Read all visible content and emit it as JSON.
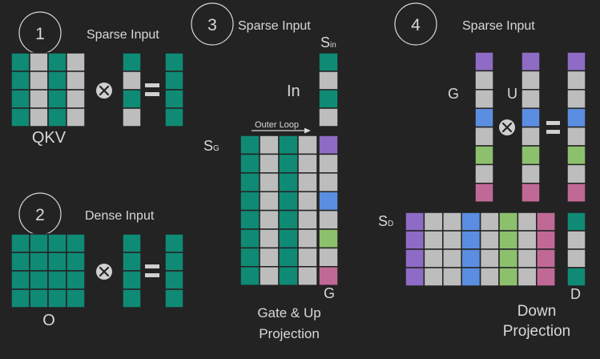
{
  "colors": {
    "background": "#232323",
    "teal": "#0f8a75",
    "gray": "#bdbdbd",
    "purple": "#8e6bc4",
    "blue": "#5b8ee0",
    "green": "#8dc06d",
    "pink": "#c06996",
    "text": "#d8d8d8"
  },
  "icons": {
    "multiply": "circled-times-icon",
    "equals": "equals-icon",
    "arrow": "right-arrow-icon"
  },
  "panel1": {
    "number": "1",
    "title": "Sparse Input",
    "matrix_label": "QKV"
  },
  "panel2": {
    "number": "2",
    "title": "Dense Input",
    "matrix_label": "O"
  },
  "panel3": {
    "number": "3",
    "title": "Sparse Input",
    "s_in": "S",
    "s_in_sub": "in",
    "in_label": "In",
    "s_g": "S",
    "s_g_sub": "G",
    "outer_loop": "Outer Loop",
    "g_label": "G",
    "caption_line1": "Gate & Up",
    "caption_line2": "Projection"
  },
  "panel4": {
    "number": "4",
    "title": "Sparse Input",
    "g_label": "G",
    "u_label": "U",
    "s_d": "S",
    "s_d_sub": "D",
    "d_label": "D",
    "caption_line1": "Down",
    "caption_line2": "Projection"
  }
}
